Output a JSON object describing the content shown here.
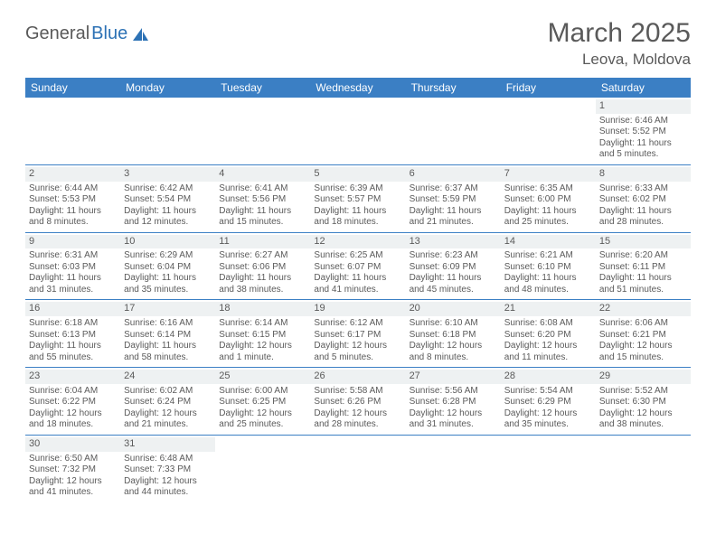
{
  "logo": {
    "general": "General",
    "blue": "Blue"
  },
  "title": "March 2025",
  "location": "Leova, Moldova",
  "weekdays": [
    "Sunday",
    "Monday",
    "Tuesday",
    "Wednesday",
    "Thursday",
    "Friday",
    "Saturday"
  ],
  "colors": {
    "header_bar": "#3b7fc4",
    "text": "#5a5a5a",
    "daynum_bg": "#eef1f2",
    "rule": "#3b7fc4",
    "white": "#ffffff",
    "logo_blue": "#2d72b5"
  },
  "startOffset": 6,
  "daysInMonth": 31,
  "days": {
    "1": {
      "sunrise": "6:46 AM",
      "sunset": "5:52 PM",
      "daylight": "11 hours and 5 minutes."
    },
    "2": {
      "sunrise": "6:44 AM",
      "sunset": "5:53 PM",
      "daylight": "11 hours and 8 minutes."
    },
    "3": {
      "sunrise": "6:42 AM",
      "sunset": "5:54 PM",
      "daylight": "11 hours and 12 minutes."
    },
    "4": {
      "sunrise": "6:41 AM",
      "sunset": "5:56 PM",
      "daylight": "11 hours and 15 minutes."
    },
    "5": {
      "sunrise": "6:39 AM",
      "sunset": "5:57 PM",
      "daylight": "11 hours and 18 minutes."
    },
    "6": {
      "sunrise": "6:37 AM",
      "sunset": "5:59 PM",
      "daylight": "11 hours and 21 minutes."
    },
    "7": {
      "sunrise": "6:35 AM",
      "sunset": "6:00 PM",
      "daylight": "11 hours and 25 minutes."
    },
    "8": {
      "sunrise": "6:33 AM",
      "sunset": "6:02 PM",
      "daylight": "11 hours and 28 minutes."
    },
    "9": {
      "sunrise": "6:31 AM",
      "sunset": "6:03 PM",
      "daylight": "11 hours and 31 minutes."
    },
    "10": {
      "sunrise": "6:29 AM",
      "sunset": "6:04 PM",
      "daylight": "11 hours and 35 minutes."
    },
    "11": {
      "sunrise": "6:27 AM",
      "sunset": "6:06 PM",
      "daylight": "11 hours and 38 minutes."
    },
    "12": {
      "sunrise": "6:25 AM",
      "sunset": "6:07 PM",
      "daylight": "11 hours and 41 minutes."
    },
    "13": {
      "sunrise": "6:23 AM",
      "sunset": "6:09 PM",
      "daylight": "11 hours and 45 minutes."
    },
    "14": {
      "sunrise": "6:21 AM",
      "sunset": "6:10 PM",
      "daylight": "11 hours and 48 minutes."
    },
    "15": {
      "sunrise": "6:20 AM",
      "sunset": "6:11 PM",
      "daylight": "11 hours and 51 minutes."
    },
    "16": {
      "sunrise": "6:18 AM",
      "sunset": "6:13 PM",
      "daylight": "11 hours and 55 minutes."
    },
    "17": {
      "sunrise": "6:16 AM",
      "sunset": "6:14 PM",
      "daylight": "11 hours and 58 minutes."
    },
    "18": {
      "sunrise": "6:14 AM",
      "sunset": "6:15 PM",
      "daylight": "12 hours and 1 minute."
    },
    "19": {
      "sunrise": "6:12 AM",
      "sunset": "6:17 PM",
      "daylight": "12 hours and 5 minutes."
    },
    "20": {
      "sunrise": "6:10 AM",
      "sunset": "6:18 PM",
      "daylight": "12 hours and 8 minutes."
    },
    "21": {
      "sunrise": "6:08 AM",
      "sunset": "6:20 PM",
      "daylight": "12 hours and 11 minutes."
    },
    "22": {
      "sunrise": "6:06 AM",
      "sunset": "6:21 PM",
      "daylight": "12 hours and 15 minutes."
    },
    "23": {
      "sunrise": "6:04 AM",
      "sunset": "6:22 PM",
      "daylight": "12 hours and 18 minutes."
    },
    "24": {
      "sunrise": "6:02 AM",
      "sunset": "6:24 PM",
      "daylight": "12 hours and 21 minutes."
    },
    "25": {
      "sunrise": "6:00 AM",
      "sunset": "6:25 PM",
      "daylight": "12 hours and 25 minutes."
    },
    "26": {
      "sunrise": "5:58 AM",
      "sunset": "6:26 PM",
      "daylight": "12 hours and 28 minutes."
    },
    "27": {
      "sunrise": "5:56 AM",
      "sunset": "6:28 PM",
      "daylight": "12 hours and 31 minutes."
    },
    "28": {
      "sunrise": "5:54 AM",
      "sunset": "6:29 PM",
      "daylight": "12 hours and 35 minutes."
    },
    "29": {
      "sunrise": "5:52 AM",
      "sunset": "6:30 PM",
      "daylight": "12 hours and 38 minutes."
    },
    "30": {
      "sunrise": "6:50 AM",
      "sunset": "7:32 PM",
      "daylight": "12 hours and 41 minutes."
    },
    "31": {
      "sunrise": "6:48 AM",
      "sunset": "7:33 PM",
      "daylight": "12 hours and 44 minutes."
    }
  },
  "labels": {
    "sunrise": "Sunrise:",
    "sunset": "Sunset:",
    "daylight": "Daylight:"
  }
}
